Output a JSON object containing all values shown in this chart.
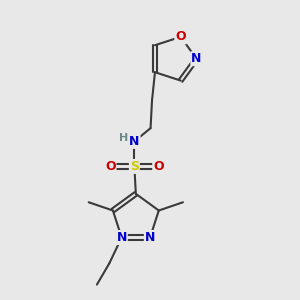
{
  "background_color": "#e8e8e8",
  "bond_color": "#3a3a3a",
  "nitrogen_color": "#0000cc",
  "oxygen_color": "#cc0000",
  "sulfur_color": "#cccc00",
  "h_color": "#6a8a8a",
  "font_size": 9,
  "bond_width": 1.5,
  "figsize": [
    3.0,
    3.0
  ],
  "dpi": 100,
  "xlim": [
    0,
    10
  ],
  "ylim": [
    0,
    10
  ]
}
